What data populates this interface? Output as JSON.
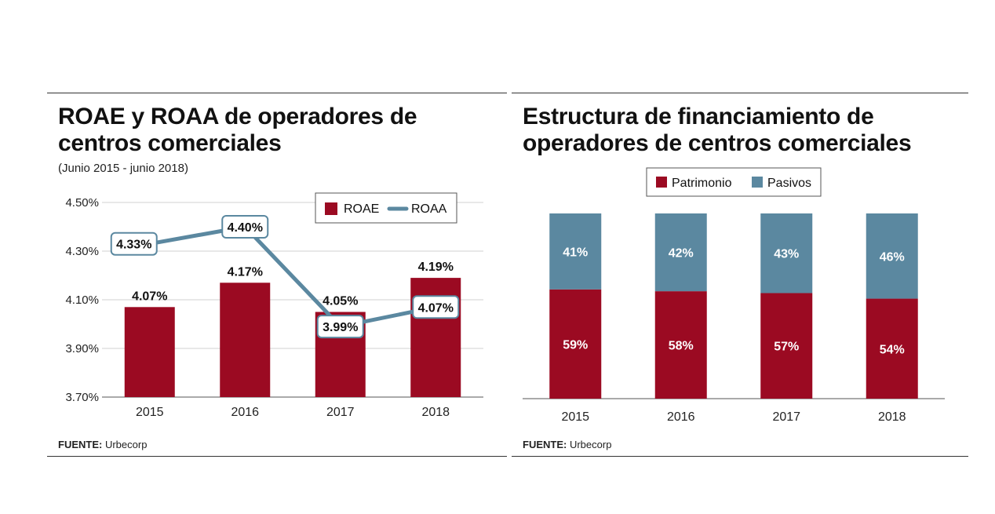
{
  "left": {
    "title_line1": "ROAE y ROAA de operadores de",
    "title_line2": "centros comerciales",
    "subtitle": "(Junio 2015 - junio 2018)",
    "source_label": "FUENTE:",
    "source_value": "Urbecorp"
  },
  "right": {
    "title_line1": "Estructura de financiamiento de",
    "title_line2": "operadores de centros comerciales",
    "source_label": "FUENTE:",
    "source_value": "Urbecorp"
  },
  "colors": {
    "roae": "#9b0a22",
    "roaa": "#5b88a0",
    "patrimonio": "#9b0a22",
    "pasivos": "#5b88a0"
  },
  "chart_data": [
    {
      "type": "bar",
      "title": "ROAE y ROAA de operadores de centros comerciales",
      "subtitle": "(Junio 2015 - junio 2018)",
      "categories": [
        "2015",
        "2016",
        "2017",
        "2018"
      ],
      "ylim": [
        3.7,
        4.5
      ],
      "yticks": [
        "4.50%",
        "4.30%",
        "4.10%",
        "3.90%",
        "3.70%"
      ],
      "ytick_values": [
        4.5,
        4.3,
        4.1,
        3.9,
        3.7
      ],
      "grid": true,
      "legend": "top-right",
      "series": [
        {
          "name": "ROAE",
          "kind": "bar",
          "values": [
            4.07,
            4.17,
            4.05,
            4.19
          ],
          "labels": [
            "4.07%",
            "4.17%",
            "4.05%",
            "4.19%"
          ]
        },
        {
          "name": "ROAA",
          "kind": "line",
          "values": [
            4.33,
            4.4,
            3.99,
            4.07
          ],
          "labels": [
            "4.33%",
            "4.40%",
            "3.99%",
            "4.07%"
          ]
        }
      ]
    },
    {
      "type": "bar",
      "stacked": true,
      "title": "Estructura de financiamiento de operadores de centros comerciales",
      "categories": [
        "2015",
        "2016",
        "2017",
        "2018"
      ],
      "legend": "top",
      "series": [
        {
          "name": "Patrimonio",
          "values": [
            59,
            58,
            57,
            54
          ],
          "labels": [
            "59%",
            "58%",
            "57%",
            "54%"
          ]
        },
        {
          "name": "Pasivos",
          "values": [
            41,
            42,
            43,
            46
          ],
          "labels": [
            "41%",
            "42%",
            "43%",
            "46%"
          ]
        }
      ]
    }
  ]
}
